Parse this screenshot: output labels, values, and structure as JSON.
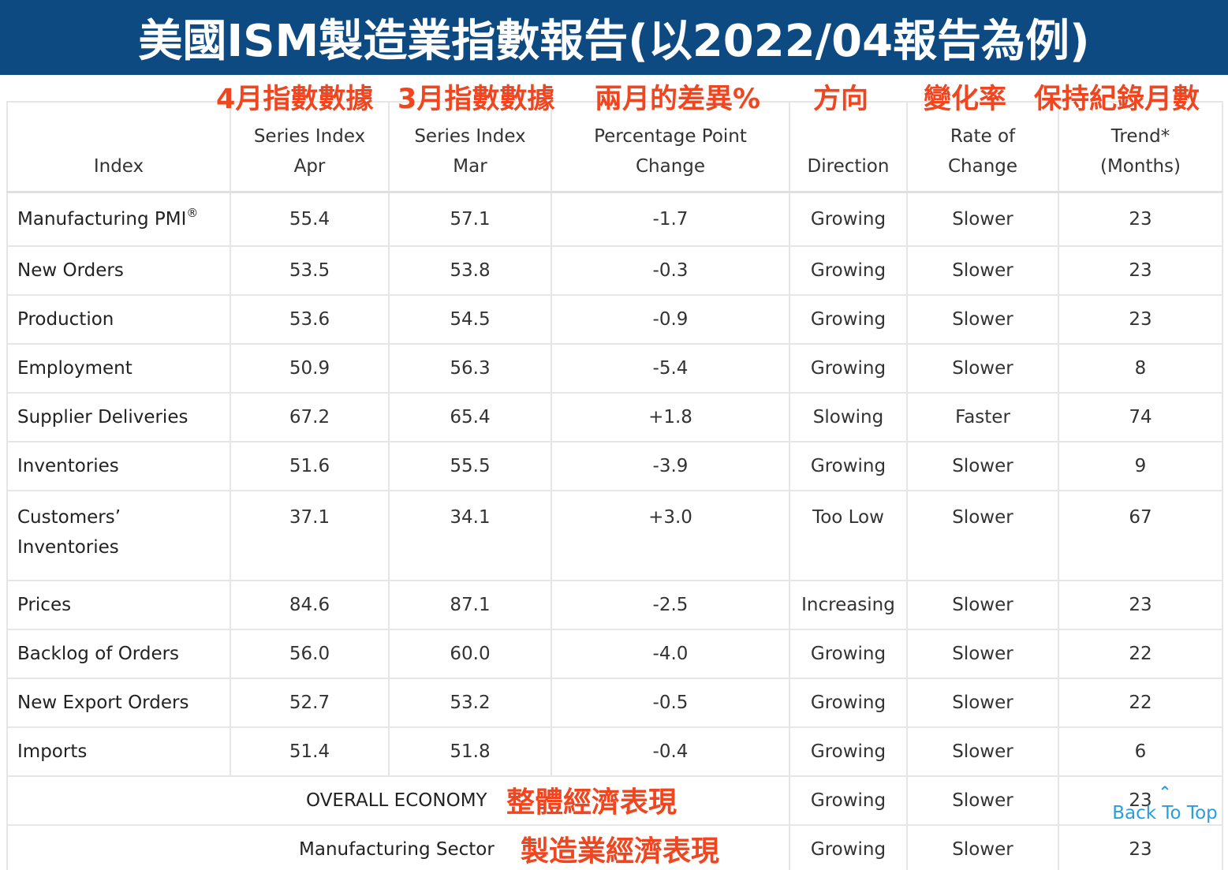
{
  "banner": {
    "title": "美國ISM製造業指數報告(以2022/04報告為例)"
  },
  "annotations": {
    "columns": [
      "4月指數數據",
      "3月指數數據",
      "兩月的差異%",
      "方向",
      "變化率",
      "保持紀錄月數"
    ],
    "overall": "整體經濟表現",
    "sector": "製造業經濟表現"
  },
  "table": {
    "headers": {
      "index": "Index",
      "apr": [
        "Series Index",
        "Apr"
      ],
      "mar": [
        "Series Index",
        "Mar"
      ],
      "change": [
        "Percentage Point",
        "Change"
      ],
      "direction": [
        "",
        "Direction"
      ],
      "rate": [
        "Rate of",
        "Change"
      ],
      "trend": [
        "Trend*",
        "(Months)"
      ]
    },
    "rows": [
      {
        "index": "Manufacturing PMI",
        "sup": "®",
        "apr": "55.4",
        "mar": "57.1",
        "change": "-1.7",
        "direction": "Growing",
        "rate": "Slower",
        "trend": "23"
      },
      {
        "index": "New Orders",
        "apr": "53.5",
        "mar": "53.8",
        "change": "-0.3",
        "direction": "Growing",
        "rate": "Slower",
        "trend": "23"
      },
      {
        "index": "Production",
        "apr": "53.6",
        "mar": "54.5",
        "change": "-0.9",
        "direction": "Growing",
        "rate": "Slower",
        "trend": "23"
      },
      {
        "index": "Employment",
        "apr": "50.9",
        "mar": "56.3",
        "change": "-5.4",
        "direction": "Growing",
        "rate": "Slower",
        "trend": "8"
      },
      {
        "index": "Supplier Deliveries",
        "apr": "67.2",
        "mar": "65.4",
        "change": "+1.8",
        "direction": "Slowing",
        "rate": "Faster",
        "trend": "74"
      },
      {
        "index": "Inventories",
        "apr": "51.6",
        "mar": "55.5",
        "change": "-3.9",
        "direction": "Growing",
        "rate": "Slower",
        "trend": "9"
      },
      {
        "index": [
          "Customers’",
          "Inventories"
        ],
        "apr": "37.1",
        "mar": "34.1",
        "change": "+3.0",
        "direction": "Too Low",
        "rate": "Slower",
        "trend": "67"
      },
      {
        "index": "Prices",
        "apr": "84.6",
        "mar": "87.1",
        "change": "-2.5",
        "direction": "Increasing",
        "rate": "Slower",
        "trend": "23"
      },
      {
        "index": "Backlog of Orders",
        "apr": "56.0",
        "mar": "60.0",
        "change": "-4.0",
        "direction": "Growing",
        "rate": "Slower",
        "trend": "22"
      },
      {
        "index": "New Export Orders",
        "apr": "52.7",
        "mar": "53.2",
        "change": "-0.5",
        "direction": "Growing",
        "rate": "Slower",
        "trend": "22"
      },
      {
        "index": "Imports",
        "apr": "51.4",
        "mar": "51.8",
        "change": "-0.4",
        "direction": "Growing",
        "rate": "Slower",
        "trend": "6"
      }
    ],
    "summary": [
      {
        "label": "OVERALL ECONOMY",
        "direction": "Growing",
        "rate": "Slower",
        "trend": "23"
      },
      {
        "label": "Manufacturing Sector",
        "direction": "Growing",
        "rate": "Slower",
        "trend": "23"
      }
    ]
  },
  "back_to_top": {
    "icon": "chevron-up-icon",
    "label": "Back To Top"
  },
  "colors": {
    "banner": "#0d4a82",
    "annotation": "#f0451e",
    "link": "#2a9de0"
  }
}
